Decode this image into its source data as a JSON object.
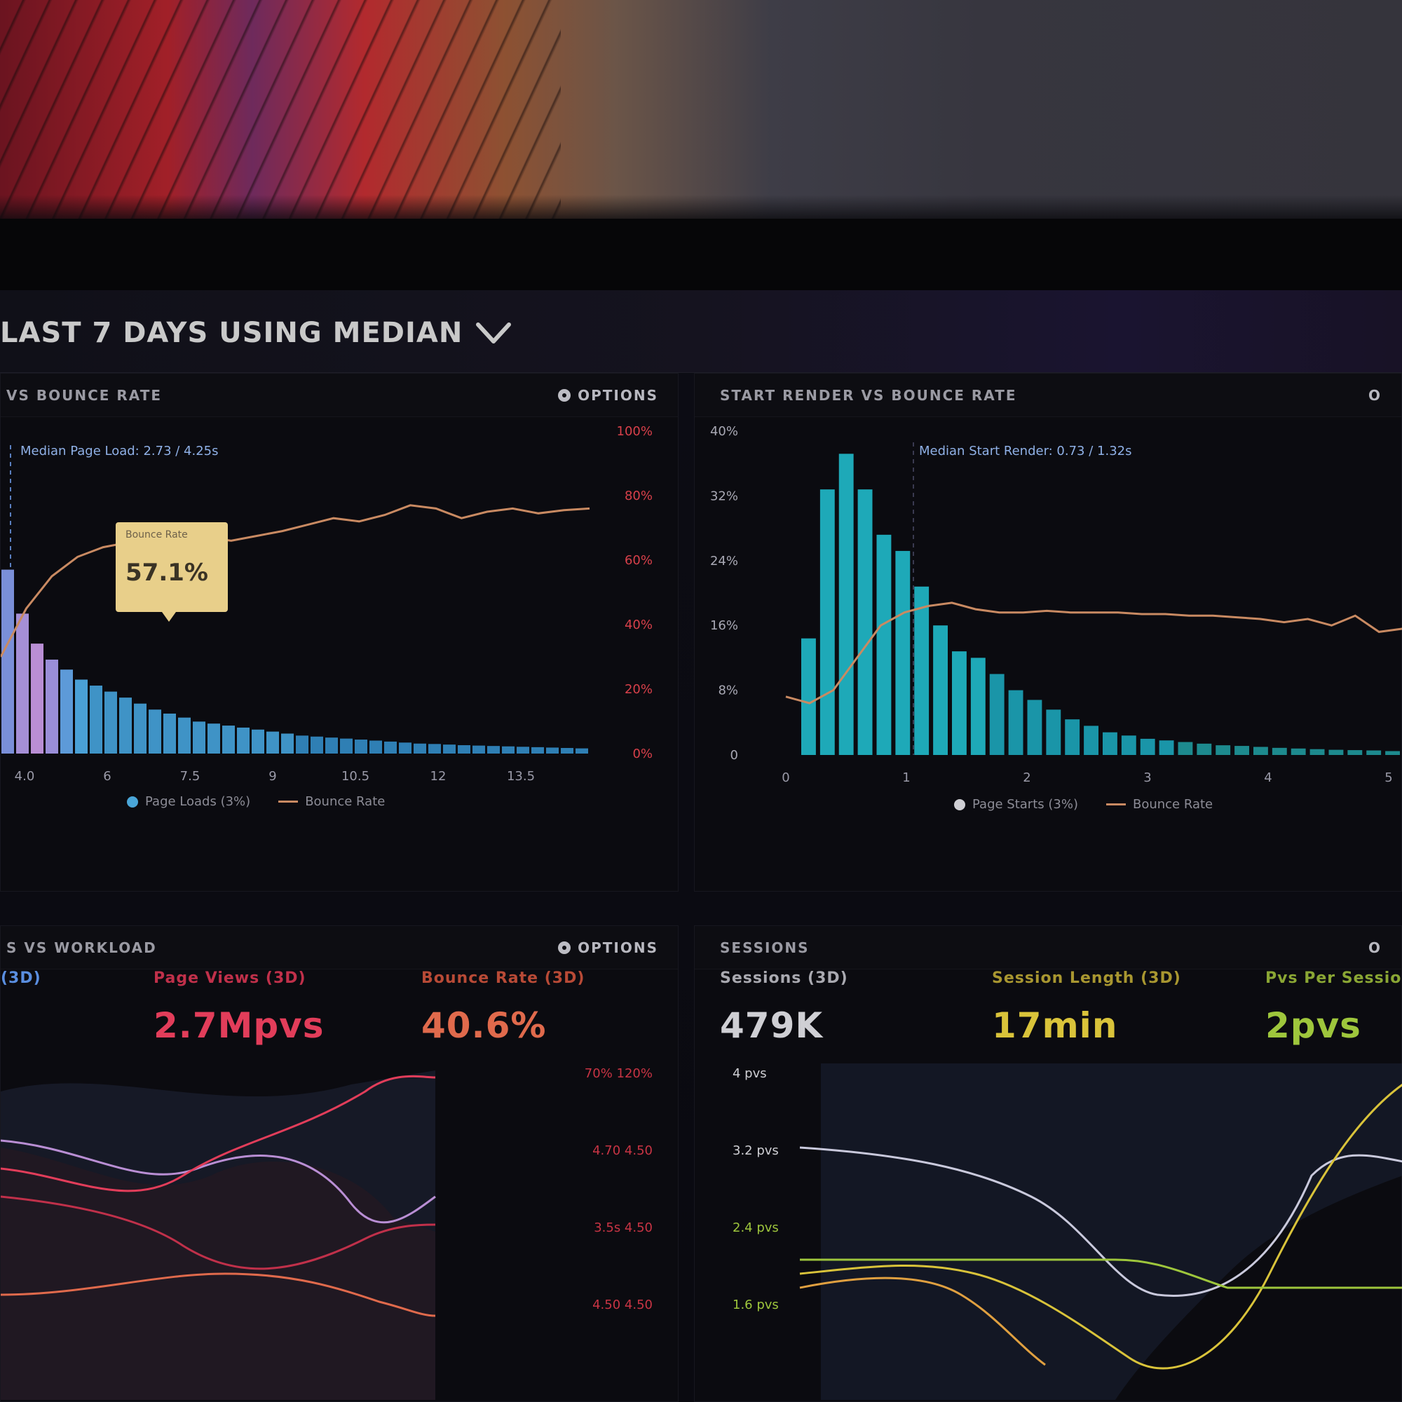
{
  "header": {
    "title": "LAST 7 DAYS USING MEDIAN"
  },
  "colors": {
    "bar_blue": "#3f93c6",
    "bar_cyan": "#1ea9b8",
    "line_orange": "#c98a62",
    "tooltip": "#e8cf8a",
    "kpi_red": "#e23d5a",
    "kpi_orange": "#e06a4c",
    "kpi_gray": "#cfcfd4",
    "kpi_yellow": "#d9c33a",
    "kpi_green": "#9ec63c"
  },
  "panels": {
    "bounce": {
      "title": "VS BOUNCE RATE",
      "option": "OPTIONS",
      "sublabel": "Median Page Load: 2.73 / 4.25s",
      "tooltip": {
        "label": "Bounce Rate",
        "value": "57.1%"
      },
      "legend": [
        "Page Loads (3%)",
        "Bounce Rate"
      ],
      "chart_data": {
        "type": "bar",
        "right_axis_ticks": [
          "100%",
          "80%",
          "60%",
          "40%",
          "20%",
          "0%"
        ],
        "x_ticks": [
          "4.0",
          "6",
          "7.5",
          "9",
          "10.5",
          "12",
          "13.5"
        ],
        "bars": [
          0.92,
          0.7,
          0.55,
          0.47,
          0.42,
          0.37,
          0.34,
          0.31,
          0.28,
          0.25,
          0.22,
          0.2,
          0.18,
          0.16,
          0.15,
          0.14,
          0.13,
          0.12,
          0.11,
          0.1,
          0.09,
          0.085,
          0.08,
          0.075,
          0.07,
          0.065,
          0.06,
          0.055,
          0.05,
          0.048,
          0.045,
          0.042,
          0.04,
          0.038,
          0.036,
          0.034,
          0.032,
          0.03,
          0.028,
          0.026
        ],
        "line": [
          0.3,
          0.45,
          0.55,
          0.61,
          0.64,
          0.655,
          0.66,
          0.665,
          0.672,
          0.66,
          0.675,
          0.69,
          0.71,
          0.73,
          0.72,
          0.74,
          0.77,
          0.76,
          0.73,
          0.75,
          0.76,
          0.745,
          0.755,
          0.76
        ]
      }
    },
    "render": {
      "title": "START RENDER VS BOUNCE RATE",
      "option": "O",
      "sublabel": "Median Start Render: 0.73 / 1.32s",
      "legend": [
        "Page Starts (3%)",
        "Bounce Rate"
      ],
      "chart_data": {
        "type": "bar",
        "left_axis_ticks": [
          "40%",
          "32%",
          "24%",
          "16%",
          "8%",
          "0"
        ],
        "x_ticks": [
          "0",
          "1",
          "2",
          "3",
          "4",
          "5"
        ],
        "bars": [
          0.36,
          0.82,
          0.93,
          0.82,
          0.68,
          0.63,
          0.52,
          0.4,
          0.32,
          0.3,
          0.25,
          0.2,
          0.17,
          0.14,
          0.11,
          0.09,
          0.07,
          0.06,
          0.05,
          0.045,
          0.04,
          0.035,
          0.03,
          0.028,
          0.025,
          0.022,
          0.02,
          0.018,
          0.016,
          0.015,
          0.014,
          0.012
        ],
        "line": [
          0.18,
          0.16,
          0.2,
          0.3,
          0.4,
          0.44,
          0.46,
          0.47,
          0.45,
          0.44,
          0.44,
          0.445,
          0.44,
          0.44,
          0.44,
          0.435,
          0.435,
          0.43,
          0.43,
          0.425,
          0.42,
          0.41,
          0.42,
          0.4,
          0.43,
          0.38,
          0.39
        ]
      }
    },
    "workload": {
      "title": "S VS WORKLOAD",
      "option": "OPTIONS",
      "kpis": [
        {
          "label": "Page Views (3D)",
          "value": "2.7Mpvs"
        },
        {
          "label": "Bounce Rate (3D)",
          "value": "40.6%"
        }
      ],
      "first_tab": "(3D)",
      "right_axis_ticks": [
        "70% 120%",
        "4.70 4.50",
        "3.5s 4.50",
        "4.50 4.50"
      ]
    },
    "sessions": {
      "title": "SESSIONS",
      "option": "O",
      "kpis": [
        {
          "label": "Sessions (3D)",
          "value": "479K"
        },
        {
          "label": "Session Length (3D)",
          "value": "17min"
        },
        {
          "label": "Pvs Per Session",
          "value": "2pvs"
        }
      ],
      "left_axis_ticks": [
        "4 pvs",
        "3.2 pvs",
        "2.4 pvs",
        "1.6 pvs"
      ]
    }
  }
}
